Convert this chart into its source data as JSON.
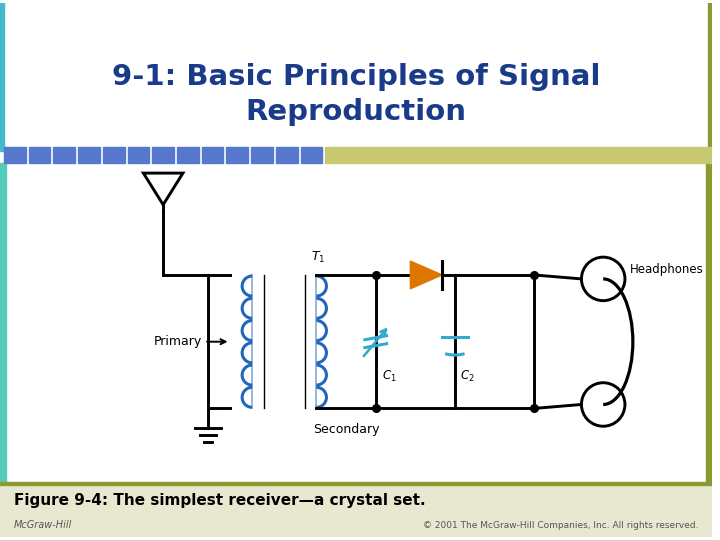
{
  "title_line1": "9-1: Basic Principles of Signal",
  "title_line2": "Reproduction",
  "title_color": "#1a3a8a",
  "title_fontsize": 21,
  "caption": "Figure 9-4: The simplest receiver—a crystal set.",
  "caption_fontsize": 11,
  "footer_left": "McGraw-Hill",
  "footer_right": "© 2001 The McGraw-Hill Companies, Inc. All rights reserved.",
  "bg_body": "#f0f0e0",
  "header_bg": "#ffffff",
  "blue_tile_color": "#5577cc",
  "accent_bar_color": "#c8c870",
  "olive_border": "#8a9a30",
  "circuit_color": "#000000",
  "inductor_color": "#2266bb",
  "diode_color": "#dd7700",
  "capacitor_color": "#33aacc",
  "caption_bg": "#e8e8d0"
}
